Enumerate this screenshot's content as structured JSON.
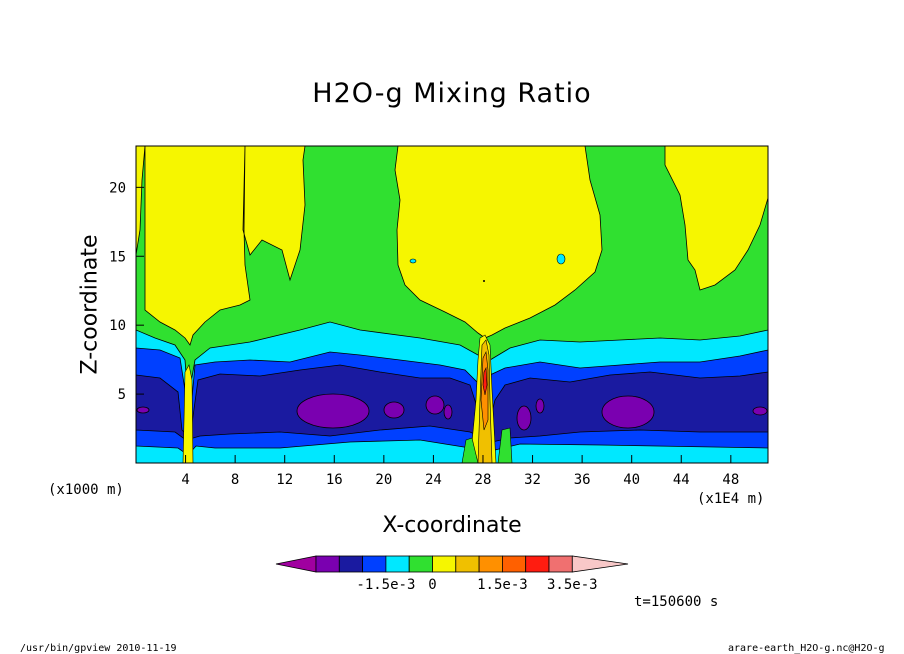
{
  "title": "H2O-g Mixing Ratio",
  "xlabel": "X-coordinate",
  "ylabel": "Z-coordinate",
  "x_unit": "(x1000 m)",
  "x_multiplier": "(x1E4 m)",
  "time_label": "t=150600 s",
  "footer_left": "/usr/bin/gpview  2010-11-19",
  "footer_right": "arare-earth_H2O-g.nc@H2O-g",
  "colorbar": {
    "colors": [
      "#a000a0",
      "#7a00b0",
      "#1a1aa0",
      "#0040ff",
      "#00e8ff",
      "#30e030",
      "#f6f600",
      "#f0c000",
      "#ff9000",
      "#ff6000",
      "#ff1c10",
      "#f07070",
      "#f8c8c8"
    ],
    "labels": [
      {
        "text": "-1.5e-3",
        "bin": 3
      },
      {
        "text": "0",
        "bin": 5
      },
      {
        "text": "1.5e-3",
        "bin": 8
      },
      {
        "text": "3.5e-3",
        "bin": 11
      }
    ]
  },
  "chart_data": {
    "type": "heatmap",
    "title": "H2O-g Mixing Ratio",
    "xlabel": "X-coordinate",
    "ylabel": "Z-coordinate",
    "x_ticks": [
      4,
      8,
      12,
      16,
      20,
      24,
      28,
      32,
      36,
      40,
      44,
      48
    ],
    "y_ticks": [
      5,
      10,
      15,
      20
    ],
    "xlim": [
      0,
      51
    ],
    "ylim": [
      0,
      23
    ],
    "regions": [
      {
        "x_center": 16,
        "z_center": 3.6,
        "level": "min"
      },
      {
        "x_center": 40,
        "z_center": 3.6,
        "level": "min"
      },
      {
        "x_center": 28,
        "z_center": 6.5,
        "level": "max"
      }
    ]
  }
}
